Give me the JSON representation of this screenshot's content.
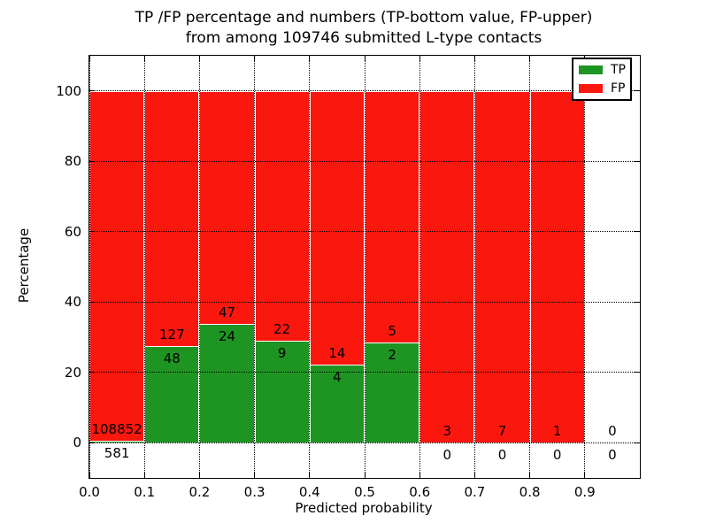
{
  "title": {
    "line1": "TP /FP percentage and numbers (TP-bottom value, FP-upper)",
    "line2": "from among 109746 submitted L-type contacts"
  },
  "axes": {
    "xlabel": "Predicted probability",
    "ylabel": "Percentage",
    "xtick_labels": [
      "0.0",
      "0.1",
      "0.2",
      "0.3",
      "0.4",
      "0.5",
      "0.6",
      "0.7",
      "0.8",
      "0.9"
    ],
    "ytick_values": [
      0,
      20,
      40,
      60,
      80,
      100
    ],
    "xlim": [
      0.0,
      1.0
    ],
    "ylim": [
      -10,
      110
    ]
  },
  "chart_data": {
    "type": "bar",
    "subtype": "stacked-100-percent",
    "title": "TP /FP percentage and numbers (TP-bottom value, FP-upper) from among 109746 submitted L-type contacts",
    "xlabel": "Predicted probability",
    "ylabel": "Percentage",
    "xlim": [
      0.0,
      1.0
    ],
    "ylim": [
      -10,
      110
    ],
    "grid": "dotted black, both axes, drawn above bars",
    "legend_position": "upper right",
    "total_submitted_contacts": 109746,
    "bin_edges": [
      0.0,
      0.1,
      0.2,
      0.3,
      0.4,
      0.5,
      0.6,
      0.7,
      0.8,
      0.9,
      1.0
    ],
    "series": [
      {
        "name": "TP",
        "color": "#1e9522",
        "stack_position": "bottom",
        "values": [
          581,
          48,
          24,
          9,
          4,
          2,
          0,
          0,
          0,
          0
        ]
      },
      {
        "name": "FP",
        "color": "#fa170e",
        "stack_position": "top",
        "values": [
          108852,
          127,
          47,
          22,
          14,
          5,
          3,
          7,
          1,
          0
        ]
      }
    ],
    "tp_percent_by_bin": [
      0.53,
      27.43,
      33.8,
      29.03,
      22.22,
      28.57,
      0,
      0,
      0,
      null
    ],
    "annotation_note": "FP count printed just above each TP/FP boundary, TP count just below it"
  }
}
